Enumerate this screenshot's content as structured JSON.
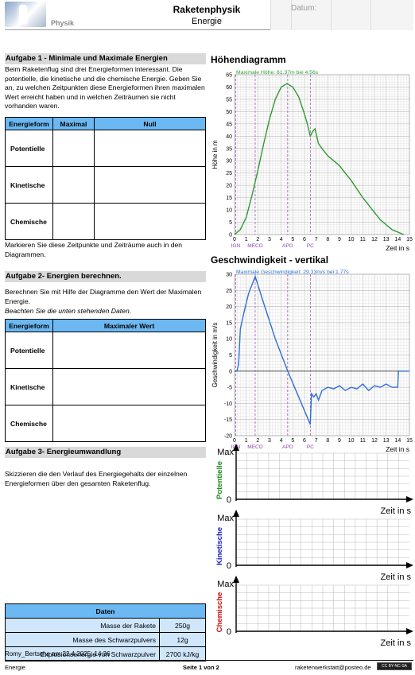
{
  "header": {
    "subject": "Physik",
    "title": "Raketenphysik",
    "subtitle": "Energie",
    "date_label": "Datum:"
  },
  "task1": {
    "title": "Aufgabe 1 - Minimale und Maximale Energien",
    "text": "Beim Raketenflug sind drei Energieformen interessant. Die potentielle, die kinetische und die chemische Energie. Geben Sie an, zu welchen Zeitpunkten diese Energieformen ihren maximalen Wert erreicht haben und in welchen Zeiträumen sie nicht vorhanden waren.",
    "columns": [
      "Energieform",
      "Maximal",
      "Null"
    ],
    "rows": [
      "Potentielle",
      "Kinetische",
      "Chemische"
    ],
    "note": "Markieren Sie diese Zeitpunkte und Zeiträume auch in den Diagrammen."
  },
  "task2": {
    "title": "Aufgabe 2- Energien berechnen.",
    "text": "Berechnen Sie mit Hilfe der Diagramme den Wert der Maximalen Energie.",
    "note": "Beachten Sie die unten stehenden Daten.",
    "columns": [
      "Energieform",
      "Maximaler Wert"
    ],
    "rows": [
      "Potentielle",
      "Kinetische",
      "Chemische"
    ]
  },
  "task3": {
    "title": "Aufgabe 3- Energieumwandlung",
    "text": "Skizzieren die den Verlauf des Energiegehalts der einzelnen Energieformen über den gesamten Raketenflug."
  },
  "data_table": {
    "title": "Daten",
    "rows": [
      {
        "label": "Masse der Rakete",
        "value": "250g"
      },
      {
        "label": "Masse des Schwarzpulvers",
        "value": "12g"
      },
      {
        "label": "Explosionsenergie von Schwarzpulver",
        "value": "2700 kJ/kg"
      }
    ]
  },
  "author_line": "Romy_Bertsche am 22.4.2025, 14:36",
  "footer": {
    "left": "Energie",
    "center": "Seite  1 von 2",
    "right": "raketenwerkstatt@posteo.de",
    "license": "CC BY-NC-SA"
  },
  "sketch": {
    "max_label": "Max",
    "zero_label": "0",
    "x_label": "Zeit in s",
    "rows": [
      {
        "label": "Potentielle",
        "color": "#1a8a1a"
      },
      {
        "label": "Kinetische",
        "color": "#1a1acc"
      },
      {
        "label": "Chemische",
        "color": "#d01010"
      }
    ]
  },
  "chart_data": [
    {
      "type": "line",
      "title": "Höhendiagramm",
      "annotation": "Maximale Höhe: 61.37m bei 4.56s",
      "ylabel": "Höhe in m",
      "xlabel": "Zeit in s",
      "xlim": [
        0,
        15
      ],
      "ylim": [
        0,
        65
      ],
      "xticks": [
        0,
        1,
        2,
        3,
        4,
        5,
        6,
        7,
        8,
        9,
        10,
        11,
        12,
        13,
        14,
        15
      ],
      "yticks": [
        0,
        5,
        10,
        15,
        20,
        25,
        30,
        35,
        40,
        45,
        50,
        55,
        60,
        65
      ],
      "color": "#2e9a2e",
      "events": [
        {
          "label": "IGN",
          "x": 0.1
        },
        {
          "label": "MECO",
          "x": 1.77
        },
        {
          "label": "APO",
          "x": 4.56
        },
        {
          "label": "PC",
          "x": 6.5
        }
      ],
      "series": [
        {
          "x": [
            0,
            0.5,
            1,
            1.5,
            2,
            2.5,
            3,
            3.5,
            4,
            4.5,
            5,
            5.5,
            6,
            6.3,
            6.5,
            6.7,
            6.9,
            7.2,
            7.5,
            8,
            8.5,
            9,
            9.5,
            10,
            10.5,
            11,
            11.5,
            12,
            12.5,
            13,
            13.5,
            14,
            14.5
          ],
          "values": [
            0,
            2,
            7,
            16,
            26,
            37,
            47,
            55,
            60,
            61.37,
            60,
            56,
            49,
            44,
            40,
            42,
            43,
            37,
            35,
            32,
            30,
            28,
            25,
            22,
            18.5,
            15,
            12,
            9,
            6,
            4,
            2,
            1,
            0
          ]
        }
      ]
    },
    {
      "type": "line",
      "title": "Geschwindigkeit - vertikal",
      "annotation": "Maximale Geschwindigkeit: 29.33m/s bei 1.77s",
      "ylabel": "Geschwindigkeit in m/s",
      "xlabel": "Zeit in s",
      "xlim": [
        0,
        15
      ],
      "ylim": [
        -20,
        30
      ],
      "xticks": [
        0,
        1,
        2,
        3,
        4,
        5,
        6,
        7,
        8,
        9,
        10,
        11,
        12,
        13,
        14,
        15
      ],
      "yticks": [
        -20,
        -15,
        -10,
        -5,
        0,
        5,
        10,
        15,
        20,
        25,
        30
      ],
      "color": "#2f6fd6",
      "events": [
        {
          "label": "IGN",
          "x": 0.1
        },
        {
          "label": "MECO",
          "x": 1.77
        },
        {
          "label": "APO",
          "x": 4.56
        },
        {
          "label": "PC",
          "x": 6.5
        }
      ],
      "series": [
        {
          "x": [
            0,
            0.2,
            0.35,
            0.5,
            0.8,
            1.2,
            1.77,
            2.5,
            3.5,
            4.56,
            5.5,
            6.5,
            6.6,
            6.8,
            7,
            7.2,
            7.5,
            8,
            8.5,
            9,
            9.5,
            10,
            10.5,
            11,
            11.5,
            12,
            12.5,
            13,
            13.5,
            14,
            14.05,
            15
          ],
          "values": [
            0,
            0,
            2,
            13,
            18,
            24,
            29.33,
            21,
            10,
            0,
            -8,
            -16.5,
            -7,
            -8,
            -7,
            -9,
            -6,
            -5,
            -5.5,
            -4.5,
            -6,
            -5,
            -5.5,
            -4,
            -6,
            -4.5,
            -5,
            -4,
            -5,
            -5,
            0,
            0
          ]
        }
      ]
    }
  ]
}
